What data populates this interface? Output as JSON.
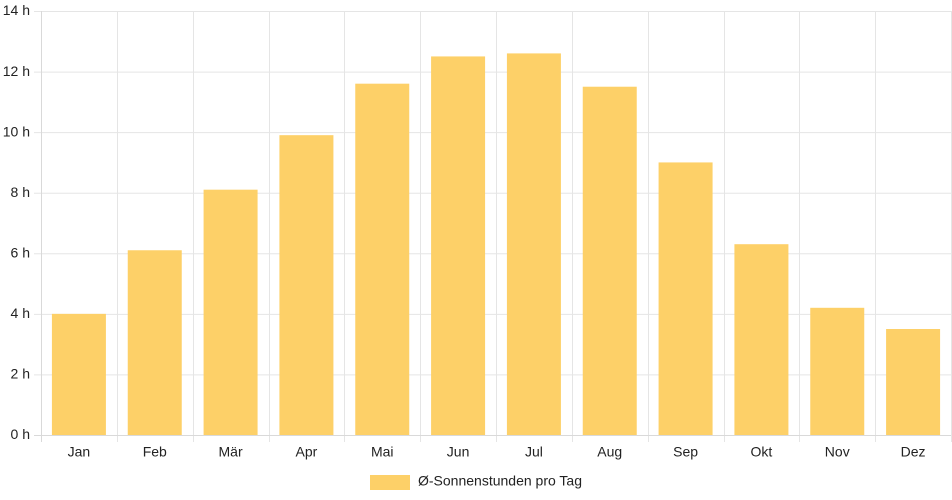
{
  "chart_data": {
    "type": "bar",
    "categories": [
      "Jan",
      "Feb",
      "Mär",
      "Apr",
      "Mai",
      "Jun",
      "Jul",
      "Aug",
      "Sep",
      "Okt",
      "Nov",
      "Dez"
    ],
    "series": [
      {
        "name": "Ø-Sonnenstunden pro Tag",
        "values": [
          4.0,
          6.1,
          8.1,
          9.9,
          11.6,
          12.5,
          12.6,
          11.5,
          9.0,
          6.3,
          4.2,
          3.5
        ],
        "color": "#fdd068"
      }
    ],
    "yticks": [
      "0 h",
      "2 h",
      "4 h",
      "6 h",
      "8 h",
      "10 h",
      "12 h",
      "14 h"
    ],
    "ylim": [
      0,
      14
    ],
    "grid": true,
    "legend_position": "bottom",
    "colors": {
      "grid": "#e5e5e5",
      "axis": "#d9d9d9",
      "text": "#222222"
    }
  }
}
